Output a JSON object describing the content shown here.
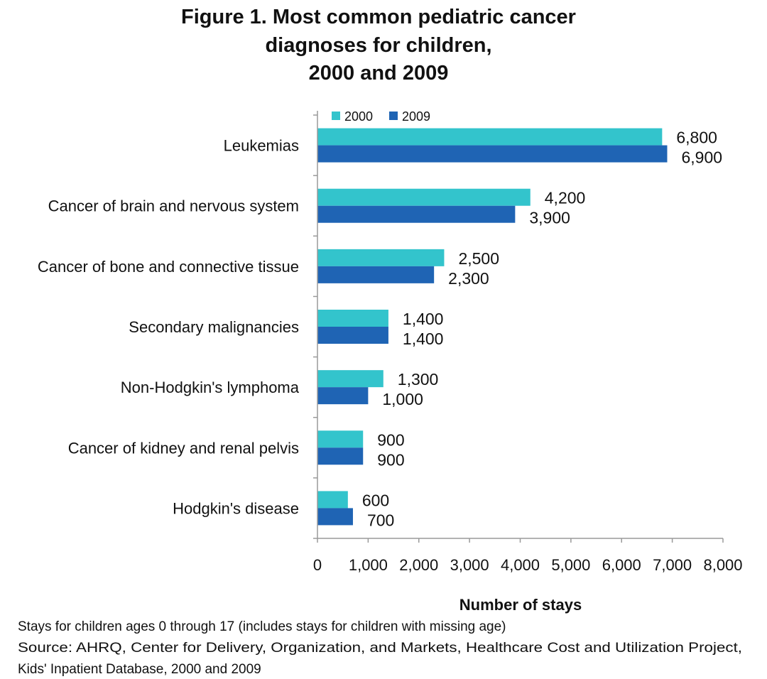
{
  "chart_data": {
    "type": "bar",
    "orientation": "horizontal",
    "title_lines": [
      "Figure 1. Most common pediatric cancer",
      "diagnoses for children,",
      "2000 and 2009"
    ],
    "categories": [
      "Leukemias",
      "Cancer of brain and nervous system",
      "Cancer of bone and connective tissue",
      "Secondary malignancies",
      "Non-Hodgkin's lymphoma",
      "Cancer of kidney and renal pelvis",
      "Hodgkin's disease"
    ],
    "series": [
      {
        "name": "2000",
        "color": "#33c4cc",
        "values": [
          6800,
          4200,
          2500,
          1400,
          1300,
          900,
          600
        ],
        "labels": [
          "6,800",
          "4,200",
          "2,500",
          "1,400",
          "1,300",
          "900",
          "600"
        ]
      },
      {
        "name": "2009",
        "color": "#1f64b4",
        "values": [
          6900,
          3900,
          2300,
          1400,
          1000,
          900,
          700
        ],
        "labels": [
          "6,900",
          "3,900",
          "2,300",
          "1,400",
          "1,000",
          "900",
          "700"
        ]
      }
    ],
    "xlim": [
      0,
      8000
    ],
    "x_ticks": [
      0,
      1000,
      2000,
      3000,
      4000,
      5000,
      6000,
      7000,
      8000
    ],
    "x_tick_labels": [
      "0",
      "1,000",
      "2,000",
      "3,000",
      "4,000",
      "5,000",
      "6,000",
      "7,000",
      "8,000"
    ],
    "xlabel": "Number of stays",
    "ylabel": "",
    "legend_position": "top",
    "grid": false,
    "notes": [
      "Stays for children ages  0 through 17 (includes stays for children with missing age)",
      "Source: AHRQ, Center for Delivery, Organization, and Markets, Healthcare Cost and Utilization Project,",
      "Kids' Inpatient Database, 2000 and 2009"
    ]
  }
}
